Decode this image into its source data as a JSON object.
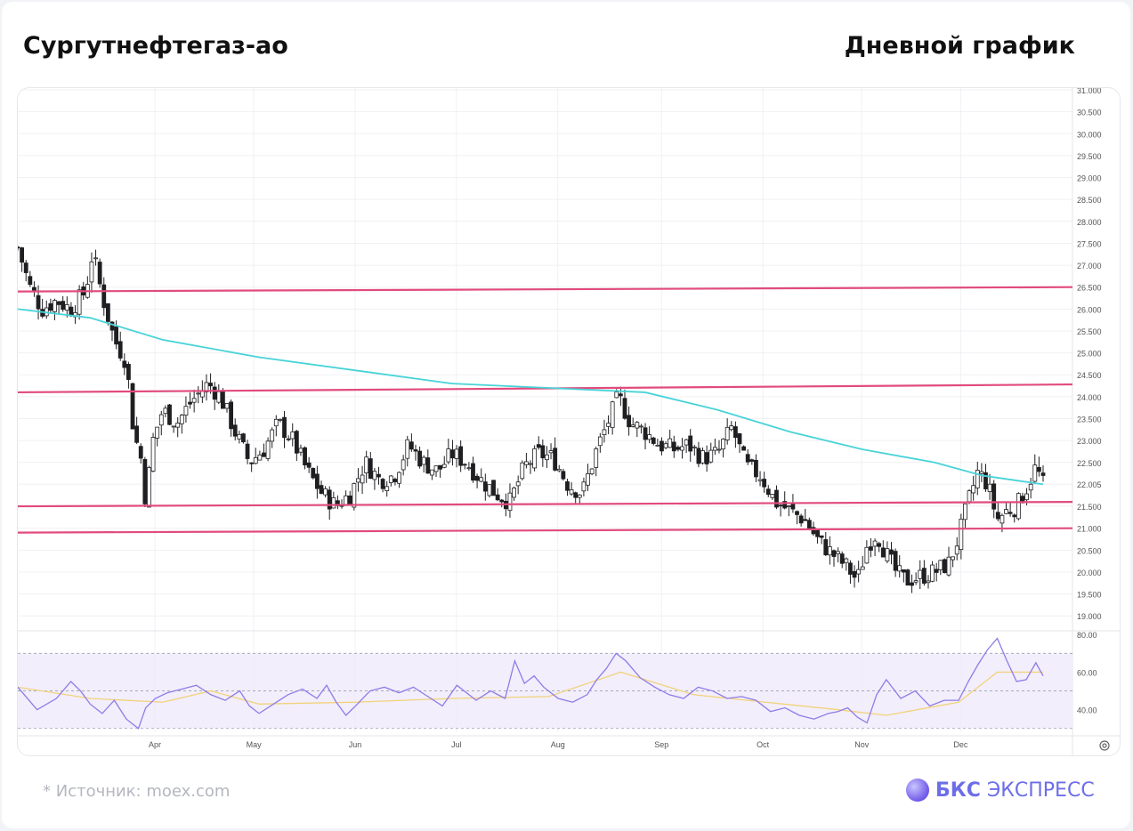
{
  "header": {
    "title": "Сургутнефтегаз-ао",
    "subtitle": "Дневной график"
  },
  "footer": {
    "source": "*  Источник: moex.com",
    "brand_bold": "БКС",
    "brand_rest": "ЭКСПРЕСС"
  },
  "colors": {
    "up_candle": "#ffffff",
    "down_candle": "#1f1f22",
    "ma_line": "#48d3d8",
    "levels": "#e14b7d",
    "rsi_line": "#8f7ce6",
    "rsi_ma": "#f2d27a",
    "rsi_band": "#efeafb"
  },
  "chart_data": [
    {
      "type": "candlestick",
      "timeframe": "daily",
      "x_months": [
        "Apr",
        "May",
        "Jun",
        "Jul",
        "Aug",
        "Sep",
        "Oct",
        "Nov",
        "Dec"
      ],
      "y_ticks": [
        "31.000",
        "30.500",
        "30.000",
        "29.500",
        "29.000",
        "28.500",
        "28.000",
        "27.500",
        "27.000",
        "26.500",
        "26.000",
        "25.500",
        "25.000",
        "24.500",
        "24.000",
        "23.500",
        "23.000",
        "22.500",
        "22.005",
        "21.500",
        "21.000",
        "20.500",
        "20.000",
        "19.500",
        "19.000"
      ],
      "ylim": [
        18.7,
        31.0
      ],
      "close_path": [
        [
          0,
          27.4
        ],
        [
          5,
          26.5
        ],
        [
          10,
          26.0
        ],
        [
          16,
          26.2
        ],
        [
          22,
          26.0
        ],
        [
          28,
          26.4
        ],
        [
          31,
          27.3
        ],
        [
          35,
          26.3
        ],
        [
          40,
          25.3
        ],
        [
          45,
          24.8
        ],
        [
          48,
          23.2
        ],
        [
          51,
          22.6
        ],
        [
          53,
          21.6
        ],
        [
          56,
          23.0
        ],
        [
          60,
          23.7
        ],
        [
          66,
          23.4
        ],
        [
          72,
          23.9
        ],
        [
          79,
          24.3
        ],
        [
          84,
          24.0
        ],
        [
          90,
          23.2
        ],
        [
          96,
          22.5
        ],
        [
          102,
          22.8
        ],
        [
          108,
          23.4
        ],
        [
          114,
          23.0
        ],
        [
          120,
          22.3
        ],
        [
          126,
          21.8
        ],
        [
          132,
          21.5
        ],
        [
          138,
          21.8
        ],
        [
          144,
          22.5
        ],
        [
          150,
          22.1
        ],
        [
          156,
          22.2
        ],
        [
          162,
          22.9
        ],
        [
          168,
          22.5
        ],
        [
          174,
          22.3
        ],
        [
          180,
          22.7
        ],
        [
          186,
          22.5
        ],
        [
          192,
          22.1
        ],
        [
          198,
          21.8
        ],
        [
          204,
          21.6
        ],
        [
          210,
          22.4
        ],
        [
          216,
          22.7
        ],
        [
          222,
          22.6
        ],
        [
          228,
          22.0
        ],
        [
          234,
          21.8
        ],
        [
          240,
          22.8
        ],
        [
          246,
          23.6
        ],
        [
          249,
          24.0
        ],
        [
          254,
          23.4
        ],
        [
          260,
          23.2
        ],
        [
          266,
          22.9
        ],
        [
          272,
          22.8
        ],
        [
          278,
          22.9
        ],
        [
          284,
          22.6
        ],
        [
          290,
          22.7
        ],
        [
          296,
          23.3
        ],
        [
          302,
          22.4
        ],
        [
          308,
          22.2
        ],
        [
          314,
          21.6
        ],
        [
          320,
          21.4
        ],
        [
          326,
          21.2
        ],
        [
          332,
          20.7
        ],
        [
          338,
          20.4
        ],
        [
          344,
          20.1
        ],
        [
          348,
          19.8
        ],
        [
          352,
          20.6
        ],
        [
          356,
          20.9
        ],
        [
          360,
          20.4
        ],
        [
          364,
          20.0
        ],
        [
          368,
          19.8
        ],
        [
          374,
          19.9
        ],
        [
          380,
          20.0
        ],
        [
          386,
          20.2
        ],
        [
          390,
          20.8
        ],
        [
          394,
          21.6
        ],
        [
          398,
          22.3
        ],
        [
          402,
          22.0
        ],
        [
          406,
          21.2
        ],
        [
          410,
          21.4
        ],
        [
          414,
          21.5
        ],
        [
          418,
          21.9
        ],
        [
          422,
          22.4
        ],
        [
          425,
          22.0
        ]
      ],
      "series": [
        {
          "name": "MA200",
          "x": [
            0,
            30,
            60,
            100,
            140,
            180,
            220,
            260,
            290,
            320,
            350,
            380,
            400,
            425
          ],
          "values": [
            26.0,
            25.8,
            25.3,
            24.9,
            24.6,
            24.3,
            24.2,
            24.1,
            23.7,
            23.2,
            22.8,
            22.5,
            22.2,
            22.0
          ]
        }
      ],
      "levels": [
        {
          "y_start": 26.4,
          "y_end": 26.5
        },
        {
          "y_start": 24.1,
          "y_end": 24.28
        },
        {
          "y_start": 21.5,
          "y_end": 21.6
        },
        {
          "y_start": 20.9,
          "y_end": 21.0
        }
      ]
    },
    {
      "type": "line",
      "indicator": "RSI",
      "y_ticks": [
        "80.00",
        "60.00",
        "40.00"
      ],
      "ylim": [
        28,
        82
      ],
      "band": [
        30,
        70
      ],
      "series": [
        {
          "name": "RSI",
          "x": [
            0,
            8,
            16,
            22,
            26,
            30,
            35,
            40,
            45,
            50,
            53,
            57,
            62,
            68,
            74,
            80,
            86,
            92,
            96,
            100,
            106,
            112,
            118,
            124,
            128,
            132,
            136,
            140,
            146,
            152,
            158,
            164,
            170,
            176,
            182,
            190,
            196,
            202,
            206,
            210,
            214,
            218,
            224,
            230,
            236,
            240,
            244,
            248,
            252,
            258,
            264,
            270,
            276,
            282,
            288,
            294,
            300,
            306,
            312,
            318,
            324,
            330,
            336,
            340,
            344,
            348,
            352,
            356,
            360,
            366,
            372,
            378,
            384,
            390,
            394,
            398,
            402,
            406,
            410,
            414,
            418,
            422,
            425
          ],
          "values": [
            52,
            40,
            46,
            55,
            50,
            43,
            38,
            45,
            35,
            30,
            41,
            46,
            49,
            51,
            53,
            48,
            45,
            50,
            42,
            38,
            43,
            48,
            51,
            46,
            53,
            44,
            37,
            42,
            50,
            52,
            49,
            52,
            47,
            42,
            53,
            45,
            50,
            46,
            66,
            54,
            58,
            52,
            46,
            44,
            48,
            56,
            62,
            70,
            66,
            57,
            52,
            48,
            46,
            52,
            50,
            46,
            47,
            45,
            39,
            41,
            37,
            35,
            38,
            39,
            41,
            36,
            33,
            48,
            56,
            46,
            50,
            42,
            45,
            45,
            55,
            64,
            72,
            78,
            66,
            55,
            56,
            65,
            58
          ]
        },
        {
          "name": "RSI MA",
          "x": [
            0,
            30,
            60,
            80,
            100,
            140,
            180,
            220,
            250,
            280,
            310,
            340,
            360,
            390,
            406,
            425
          ],
          "values": [
            52,
            46,
            44,
            50,
            43,
            44,
            46,
            47,
            60,
            48,
            44,
            40,
            37,
            44,
            60,
            60
          ]
        }
      ]
    }
  ]
}
